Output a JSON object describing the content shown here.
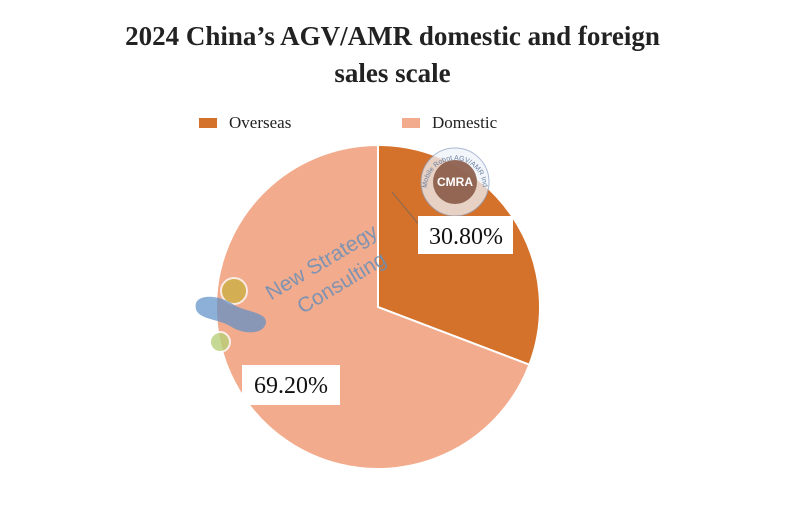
{
  "chart_data": {
    "type": "pie",
    "title_line1": "2024 China’s AGV/AMR domestic and foreign",
    "title_line2": "sales scale",
    "slices": [
      {
        "name": "Overseas",
        "value": 30.8,
        "label": "30.80%",
        "color": "#d4712a"
      },
      {
        "name": "Domestic",
        "value": 69.2,
        "label": "69.20%",
        "color": "#f2ab8c"
      }
    ],
    "legend": {
      "position": "top"
    }
  },
  "watermark": {
    "line1": "New Strategy",
    "line2": "Consulting",
    "seal_ring_text": "Mobile Robot AGV/AMR Industry Alliance",
    "seal_center": "CMRA"
  }
}
